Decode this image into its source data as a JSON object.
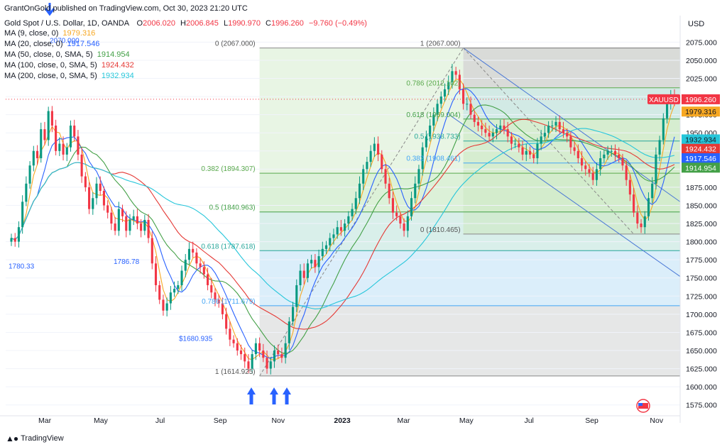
{
  "header": {
    "publisher": "GrantOnGold published on TradingView.com, Oct 30, 2023 21:20 UTC",
    "symbol": "Gold Spot / U.S. Dollar, 1D, OANDA",
    "open_label": "O",
    "open": "2006.020",
    "high_label": "H",
    "high": "2006.845",
    "low_label": "L",
    "low": "1990.970",
    "close_label": "C",
    "close": "1996.260",
    "change": "−9.760 (−0.49%)"
  },
  "currency": "USD",
  "brand": "TradingView",
  "colors": {
    "up": "#089981",
    "down": "#f23645",
    "ma9": "#f7a823",
    "ma20": "#2962ff",
    "ma50": "#43a047",
    "ma100": "#e53935",
    "ma200": "#26c6da",
    "fib_fill_green": "#d7f0d4",
    "fib_fill_blue": "#d2ecfb",
    "fib_fill_gray": "#e0e0e0",
    "channel": "#4a78d6"
  },
  "chart_data": {
    "type": "candlestick",
    "x_ticks": [
      "Mar",
      "May",
      "Jul",
      "Sep",
      "Nov",
      "2023",
      "Mar",
      "May",
      "Jul",
      "Sep",
      "Nov"
    ],
    "y_ticks": [
      1575,
      1600,
      1625,
      1650,
      1675,
      1700,
      1725,
      1750,
      1775,
      1800,
      1825,
      1850,
      1875,
      1900,
      1925,
      1950,
      1975,
      2000,
      2025,
      2050,
      2075
    ],
    "y_tick_labels": [
      "1575.000",
      "1600.000",
      "1625.000",
      "1650.000",
      "1675.000",
      "1700.000",
      "1725.000",
      "1750.000",
      "1775.000",
      "1800.000",
      "1825.000",
      "1850.000",
      "1875.000",
      "1900.000",
      "1925.000",
      "1950.000",
      "1975.000",
      "2000.000",
      "2025.000",
      "2050.000",
      "2075.000"
    ],
    "ylim": [
      1562,
      2092
    ],
    "series_close": [
      1805,
      1800,
      1820,
      1855,
      1880,
      1905,
      1925,
      1915,
      1955,
      1940,
      1980,
      1960,
      1925,
      1935,
      1920,
      1930,
      1960,
      1945,
      1920,
      1890,
      1875,
      1845,
      1860,
      1880,
      1870,
      1850,
      1840,
      1825,
      1815,
      1845,
      1835,
      1815,
      1830,
      1835,
      1825,
      1815,
      1830,
      1805,
      1770,
      1740,
      1720,
      1705,
      1715,
      1730,
      1735,
      1740,
      1760,
      1775,
      1790,
      1785,
      1770,
      1765,
      1755,
      1740,
      1730,
      1720,
      1715,
      1700,
      1680,
      1665,
      1660,
      1650,
      1645,
      1635,
      1625,
      1645,
      1660,
      1650,
      1640,
      1625,
      1635,
      1650,
      1645,
      1640,
      1660,
      1690,
      1710,
      1740,
      1760,
      1750,
      1770,
      1775,
      1765,
      1780,
      1790,
      1795,
      1805,
      1810,
      1820,
      1815,
      1825,
      1835,
      1845,
      1860,
      1880,
      1900,
      1910,
      1925,
      1935,
      1920,
      1900,
      1880,
      1860,
      1840,
      1835,
      1825,
      1815,
      1835,
      1860,
      1880,
      1900,
      1930,
      1945,
      1960,
      1975,
      1990,
      2000,
      2010,
      2020,
      2035,
      2030,
      2010,
      1990,
      1990,
      1975,
      1965,
      1960,
      1955,
      1950,
      1945,
      1950,
      1955,
      1960,
      1955,
      1945,
      1935,
      1935,
      1930,
      1920,
      1925,
      1920,
      1915,
      1935,
      1945,
      1950,
      1960,
      1960,
      1965,
      1955,
      1950,
      1945,
      1930,
      1925,
      1915,
      1905,
      1900,
      1895,
      1885,
      1900,
      1915,
      1920,
      1925,
      1925,
      1920,
      1915,
      1905,
      1885,
      1865,
      1840,
      1825,
      1820,
      1835,
      1860,
      1880,
      1920,
      1940,
      1970,
      1990,
      2000,
      1996
    ],
    "moving_averages": [
      {
        "name": "MA (9, close, 0)",
        "value": "1979.316"
      },
      {
        "name": "MA (20, close, 0)",
        "value": "1917.546"
      },
      {
        "name": "MA (50, close, 0, SMA, 5)",
        "value": "1914.954"
      },
      {
        "name": "MA (100, close, 0, SMA, 5)",
        "value": "1924.432"
      },
      {
        "name": "MA (200, close, 0, SMA, 5)",
        "value": "1932.934"
      }
    ],
    "price_tags": [
      {
        "label": "XAUUSD",
        "value": "1996.260",
        "price": 1996.26,
        "color": "#f23645"
      },
      {
        "label": "",
        "value": "1979.316",
        "price": 1979.316,
        "color": "#f7a823",
        "text_color": "#131722"
      },
      {
        "label": "",
        "value": "1932.934",
        "price": 1941.0,
        "color": "#26c6da",
        "text_color": "#131722"
      },
      {
        "label": "",
        "value": "1924.432",
        "price": 1928.0,
        "color": "#e53935"
      },
      {
        "label": "",
        "value": "1917.546",
        "price": 1915.0,
        "color": "#2962ff"
      },
      {
        "label": "",
        "value": "1914.954",
        "price": 1902.0,
        "color": "#43a047"
      }
    ],
    "fib_left": [
      {
        "label": "0 (2067.000)",
        "price": 2067
      },
      {
        "label": "0.382 (1894.307)",
        "price": 1894.307
      },
      {
        "label": "0.5 (1840.963)",
        "price": 1840.963
      },
      {
        "label": "0.618 (1787.618)",
        "price": 1787.618
      },
      {
        "label": "0.786 (1711.679)",
        "price": 1711.679
      },
      {
        "label": "1 (1614.925)",
        "price": 1614.925
      }
    ],
    "fib_right": [
      {
        "label": "1 (2067.000)",
        "price": 2067
      },
      {
        "label": "0.786 (2012.102)",
        "price": 2012.102
      },
      {
        "label": "0.618 (1969.004)",
        "price": 1969.004
      },
      {
        "label": "0.5 (1938.733)",
        "price": 1938.733
      },
      {
        "label": "0.382 (1908.461)",
        "price": 1908.461
      },
      {
        "label": "0 (1810.465)",
        "price": 1810.465
      }
    ],
    "annotations": [
      {
        "text": "1780.33",
        "price": 1780.33
      },
      {
        "text": "1786.78",
        "price": 1786.78
      },
      {
        "text": "$1680.935",
        "price": 1680.935
      },
      {
        "text": "2070.000",
        "price": 2070
      }
    ]
  }
}
